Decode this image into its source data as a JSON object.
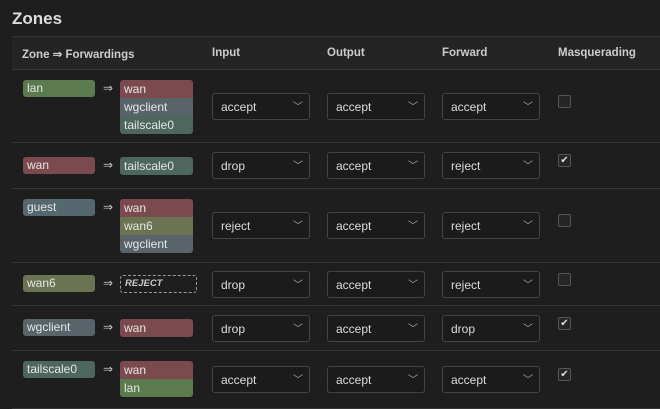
{
  "title": "Zones",
  "headers": [
    "Zone ⇒ Forwardings",
    "Input",
    "Output",
    "Forward",
    "Masquerading"
  ],
  "arrow": "⇒",
  "chevron": "﹀",
  "check": "✔",
  "colors": {
    "lan": "#5b7b4f",
    "wan": "#7b4a4f",
    "wgclient": "#58646a",
    "tailscale0": "#4d665e",
    "guest": "#56686f",
    "wan6": "#6a7352"
  },
  "zones": [
    {
      "name": "lan",
      "dests": [
        "wan",
        "wgclient",
        "tailscale0"
      ],
      "input": "accept",
      "output": "accept",
      "forward": "accept",
      "masq": false
    },
    {
      "name": "wan",
      "dests": [
        "tailscale0"
      ],
      "input": "drop",
      "output": "accept",
      "forward": "reject",
      "masq": true
    },
    {
      "name": "guest",
      "dests": [
        "wan",
        "wan6",
        "wgclient"
      ],
      "input": "reject",
      "output": "accept",
      "forward": "reject",
      "masq": false
    },
    {
      "name": "wan6",
      "dests": [],
      "reject_label": "REJECT",
      "input": "drop",
      "output": "accept",
      "forward": "reject",
      "masq": false
    },
    {
      "name": "wgclient",
      "dests": [
        "wan"
      ],
      "input": "drop",
      "output": "accept",
      "forward": "drop",
      "masq": true
    },
    {
      "name": "tailscale0",
      "dests": [
        "wan",
        "lan"
      ],
      "input": "accept",
      "output": "accept",
      "forward": "accept",
      "masq": true
    }
  ]
}
